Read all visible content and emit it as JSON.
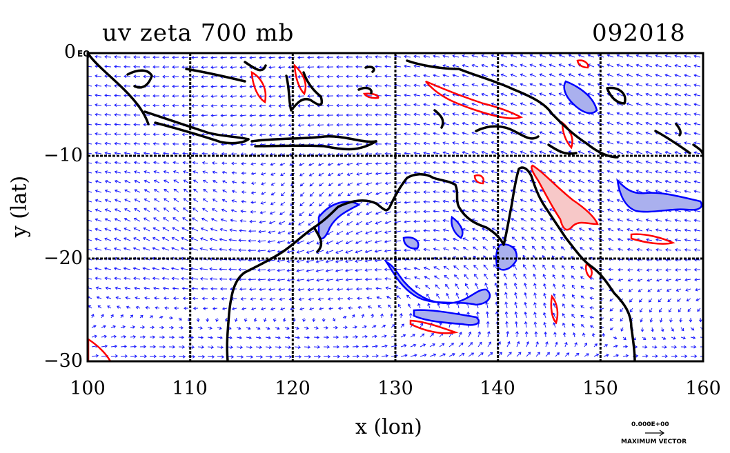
{
  "header": {
    "title": "uv zeta 700 mb",
    "date_code": "092018"
  },
  "map": {
    "lon_range": [
      100,
      160
    ],
    "lat_range": [
      -30,
      0
    ],
    "x_ticks": [
      "100",
      "110",
      "120",
      "130",
      "140",
      "150",
      "160"
    ],
    "y_ticks": [
      "0",
      "−10",
      "−20",
      "−30"
    ],
    "xlabel": "x (lon)",
    "ylabel": "y (lat)",
    "corner_label": "EQ",
    "grid": true,
    "colors": {
      "vectors": "#1a1aff",
      "positive_vorticity": "#ff0000",
      "positive_fill": "#f7c8c8",
      "negative_vorticity": "#0000ff",
      "negative_fill": "#aab0ee",
      "coastline": "#000000"
    }
  },
  "legend": {
    "value": "0.000E+00",
    "label": "MAXIMUM VECTOR"
  }
}
